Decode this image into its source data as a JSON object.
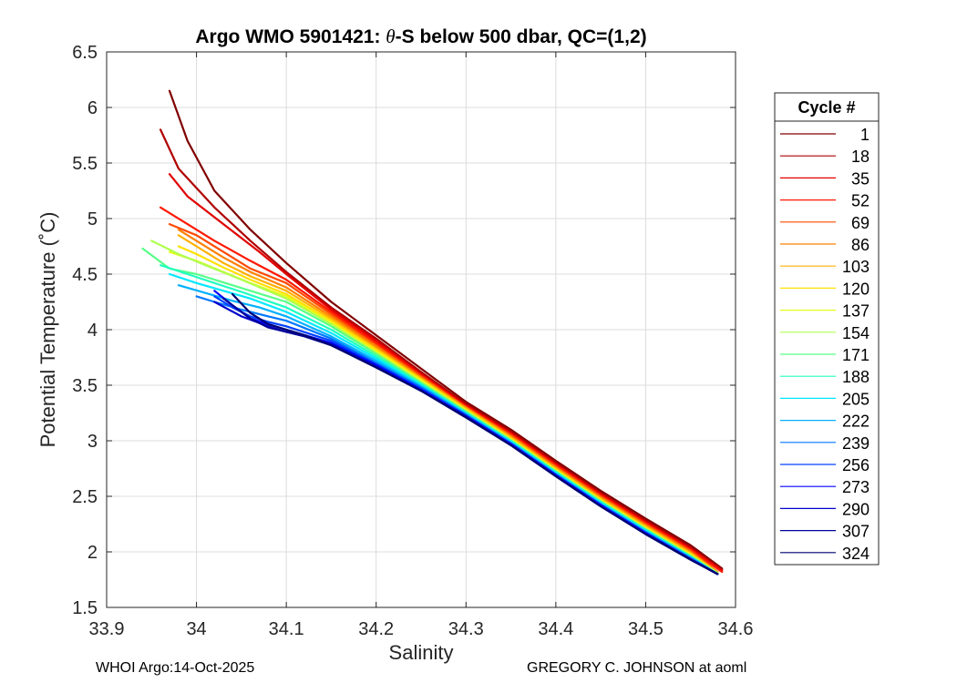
{
  "chart_data": {
    "type": "line",
    "title_prefix": "Argo WMO 5901421: ",
    "title_theta": "θ",
    "title_suffix": "-S below 500 dbar,  QC=(1,2)",
    "xlabel": "Salinity",
    "ylabel": "Potential Temperature (˚C)",
    "xlim": [
      33.9,
      34.6
    ],
    "ylim": [
      1.5,
      6.5
    ],
    "xticks": [
      33.9,
      34,
      34.1,
      34.2,
      34.3,
      34.4,
      34.5,
      34.6
    ],
    "xtick_labels": [
      "33.9",
      "34",
      "34.1",
      "34.2",
      "34.3",
      "34.4",
      "34.5",
      "34.6"
    ],
    "yticks": [
      1.5,
      2,
      2.5,
      3,
      3.5,
      4,
      4.5,
      5,
      5.5,
      6,
      6.5
    ],
    "ytick_labels": [
      "1.5",
      "2",
      "2.5",
      "3",
      "3.5",
      "4",
      "4.5",
      "5",
      "5.5",
      "6",
      "6.5"
    ],
    "grid": true,
    "legend_position": "right",
    "legend_title": "Cycle #",
    "legend": [
      {
        "label": "1",
        "color": "#800000"
      },
      {
        "label": "18",
        "color": "#b00000"
      },
      {
        "label": "35",
        "color": "#e00000"
      },
      {
        "label": "52",
        "color": "#ff1800"
      },
      {
        "label": "69",
        "color": "#ff4a00"
      },
      {
        "label": "86",
        "color": "#ff8000"
      },
      {
        "label": "103",
        "color": "#ffb000"
      },
      {
        "label": "120",
        "color": "#ffe000"
      },
      {
        "label": "137",
        "color": "#e6ff18"
      },
      {
        "label": "154",
        "color": "#b0ff4f"
      },
      {
        "label": "171",
        "color": "#58ff88"
      },
      {
        "label": "188",
        "color": "#20ffc0"
      },
      {
        "label": "205",
        "color": "#00e8ff"
      },
      {
        "label": "222",
        "color": "#00b0ff"
      },
      {
        "label": "239",
        "color": "#0078ff"
      },
      {
        "label": "256",
        "color": "#0040ff"
      },
      {
        "label": "273",
        "color": "#0000ff"
      },
      {
        "label": "290",
        "color": "#0000cc"
      },
      {
        "label": "307",
        "color": "#000099"
      },
      {
        "label": "324",
        "color": "#000070"
      }
    ],
    "series": [
      {
        "name": "1",
        "color": "#800000",
        "x": [
          33.97,
          33.99,
          34.02,
          34.06,
          34.1,
          34.15,
          34.2,
          34.25,
          34.3,
          34.35,
          34.4,
          34.45,
          34.5,
          34.55,
          34.585
        ],
        "y": [
          6.15,
          5.7,
          5.25,
          4.9,
          4.6,
          4.25,
          3.95,
          3.65,
          3.35,
          3.1,
          2.82,
          2.55,
          2.3,
          2.06,
          1.85
        ]
      },
      {
        "name": "18",
        "color": "#b00000",
        "x": [
          33.96,
          33.98,
          34.02,
          34.06,
          34.1,
          34.15,
          34.2,
          34.25,
          34.3,
          34.35,
          34.4,
          34.45,
          34.5,
          34.55,
          34.585
        ],
        "y": [
          5.8,
          5.45,
          5.1,
          4.8,
          4.52,
          4.2,
          3.92,
          3.62,
          3.33,
          3.08,
          2.8,
          2.53,
          2.28,
          2.04,
          1.84
        ]
      },
      {
        "name": "35",
        "color": "#e00000",
        "x": [
          33.97,
          33.99,
          34.03,
          34.07,
          34.1,
          34.15,
          34.2,
          34.25,
          34.3,
          34.35,
          34.4,
          34.45,
          34.5,
          34.55,
          34.585
        ],
        "y": [
          5.4,
          5.2,
          4.95,
          4.7,
          4.5,
          4.18,
          3.9,
          3.6,
          3.32,
          3.07,
          2.79,
          2.52,
          2.27,
          2.03,
          1.83
        ]
      },
      {
        "name": "52",
        "color": "#ff1800",
        "x": [
          33.96,
          33.99,
          34.02,
          34.06,
          34.1,
          34.15,
          34.2,
          34.25,
          34.3,
          34.35,
          34.4,
          34.45,
          34.5,
          34.55,
          34.585
        ],
        "y": [
          5.1,
          4.95,
          4.8,
          4.62,
          4.45,
          4.16,
          3.88,
          3.59,
          3.31,
          3.06,
          2.78,
          2.51,
          2.26,
          2.02,
          1.82
        ]
      },
      {
        "name": "69",
        "color": "#ff4a00",
        "x": [
          33.97,
          34.0,
          34.03,
          34.06,
          34.1,
          34.15,
          34.2,
          34.25,
          34.3,
          34.35,
          34.4,
          34.45,
          34.5,
          34.55,
          34.58
        ],
        "y": [
          4.95,
          4.85,
          4.7,
          4.55,
          4.42,
          4.14,
          3.86,
          3.58,
          3.3,
          3.05,
          2.77,
          2.5,
          2.25,
          2.01,
          1.82
        ]
      },
      {
        "name": "86",
        "color": "#ff8000",
        "x": [
          33.98,
          34.0,
          34.03,
          34.06,
          34.1,
          34.15,
          34.2,
          34.25,
          34.3,
          34.35,
          34.4,
          34.45,
          34.5,
          34.55,
          34.58
        ],
        "y": [
          4.9,
          4.8,
          4.65,
          4.52,
          4.38,
          4.12,
          3.85,
          3.57,
          3.3,
          3.04,
          2.76,
          2.49,
          2.24,
          2.0,
          1.82
        ]
      },
      {
        "name": "103",
        "color": "#ffb000",
        "x": [
          33.98,
          34.0,
          34.03,
          34.06,
          34.1,
          34.15,
          34.2,
          34.25,
          34.3,
          34.35,
          34.4,
          34.45,
          34.5,
          34.55,
          34.58
        ],
        "y": [
          4.85,
          4.75,
          4.6,
          4.48,
          4.35,
          4.1,
          3.83,
          3.56,
          3.29,
          3.03,
          2.75,
          2.48,
          2.23,
          1.99,
          1.81
        ]
      },
      {
        "name": "120",
        "color": "#ffe000",
        "x": [
          33.98,
          34.0,
          34.03,
          34.06,
          34.1,
          34.15,
          34.2,
          34.25,
          34.3,
          34.35,
          34.4,
          34.45,
          34.5,
          34.55,
          34.58
        ],
        "y": [
          4.75,
          4.68,
          4.56,
          4.45,
          4.32,
          4.08,
          3.82,
          3.55,
          3.28,
          3.02,
          2.74,
          2.47,
          2.22,
          1.98,
          1.81
        ]
      },
      {
        "name": "137",
        "color": "#e6ff18",
        "x": [
          33.97,
          34.0,
          34.03,
          34.06,
          34.1,
          34.15,
          34.2,
          34.25,
          34.3,
          34.35,
          34.4,
          34.45,
          34.5,
          34.55,
          34.58
        ],
        "y": [
          4.7,
          4.62,
          4.52,
          4.42,
          4.3,
          4.06,
          3.8,
          3.54,
          3.27,
          3.01,
          2.73,
          2.46,
          2.21,
          1.97,
          1.81
        ]
      },
      {
        "name": "154",
        "color": "#b0ff4f",
        "x": [
          33.95,
          33.98,
          34.01,
          34.05,
          34.1,
          34.15,
          34.2,
          34.25,
          34.3,
          34.35,
          34.4,
          34.45,
          34.5,
          34.55,
          34.58
        ],
        "y": [
          4.8,
          4.68,
          4.58,
          4.45,
          4.28,
          4.05,
          3.79,
          3.53,
          3.27,
          3.01,
          2.73,
          2.46,
          2.21,
          1.97,
          1.81
        ]
      },
      {
        "name": "171",
        "color": "#58ff88",
        "x": [
          33.94,
          33.97,
          34.0,
          34.04,
          34.1,
          34.15,
          34.2,
          34.25,
          34.3,
          34.35,
          34.4,
          34.45,
          34.5,
          34.55,
          34.58
        ],
        "y": [
          4.73,
          4.55,
          4.5,
          4.4,
          4.25,
          4.03,
          3.78,
          3.52,
          3.26,
          3.0,
          2.72,
          2.45,
          2.2,
          1.96,
          1.8
        ]
      },
      {
        "name": "188",
        "color": "#20ffc0",
        "x": [
          33.96,
          33.99,
          34.02,
          34.05,
          34.1,
          34.15,
          34.2,
          34.25,
          34.3,
          34.35,
          34.4,
          34.45,
          34.5,
          34.55,
          34.58
        ],
        "y": [
          4.58,
          4.5,
          4.42,
          4.34,
          4.2,
          4.0,
          3.76,
          3.51,
          3.25,
          3.0,
          2.72,
          2.45,
          2.2,
          1.96,
          1.8
        ]
      },
      {
        "name": "205",
        "color": "#00e8ff",
        "x": [
          33.97,
          34.0,
          34.03,
          34.06,
          34.1,
          34.15,
          34.2,
          34.25,
          34.3,
          34.35,
          34.4,
          34.45,
          34.5,
          34.55,
          34.58
        ],
        "y": [
          4.5,
          4.42,
          4.35,
          4.28,
          4.16,
          3.97,
          3.74,
          3.5,
          3.25,
          2.99,
          2.71,
          2.44,
          2.19,
          1.95,
          1.8
        ]
      },
      {
        "name": "222",
        "color": "#00b0ff",
        "x": [
          33.98,
          34.01,
          34.04,
          34.07,
          34.1,
          34.15,
          34.2,
          34.25,
          34.3,
          34.35,
          34.4,
          34.45,
          34.5,
          34.55,
          34.58
        ],
        "y": [
          4.4,
          4.33,
          4.26,
          4.2,
          4.12,
          3.94,
          3.72,
          3.49,
          3.24,
          2.98,
          2.7,
          2.43,
          2.18,
          1.95,
          1.8
        ]
      },
      {
        "name": "239",
        "color": "#0078ff",
        "x": [
          34.0,
          34.02,
          34.05,
          34.08,
          34.1,
          34.15,
          34.2,
          34.25,
          34.3,
          34.35,
          34.4,
          34.45,
          34.5,
          34.55,
          34.58
        ],
        "y": [
          4.3,
          4.25,
          4.18,
          4.12,
          4.08,
          3.92,
          3.7,
          3.48,
          3.23,
          2.98,
          2.7,
          2.43,
          2.18,
          1.94,
          1.8
        ]
      },
      {
        "name": "256",
        "color": "#0040ff",
        "x": [
          34.02,
          34.04,
          34.06,
          34.08,
          34.1,
          34.15,
          34.2,
          34.25,
          34.3,
          34.35,
          34.4,
          34.45,
          34.5,
          34.55,
          34.58
        ],
        "y": [
          4.3,
          4.2,
          4.12,
          4.07,
          4.03,
          3.9,
          3.69,
          3.47,
          3.23,
          2.97,
          2.69,
          2.42,
          2.17,
          1.94,
          1.8
        ]
      },
      {
        "name": "273",
        "color": "#0000ff",
        "x": [
          34.02,
          34.04,
          34.06,
          34.08,
          34.1,
          34.15,
          34.2,
          34.25,
          34.3,
          34.35,
          34.4,
          34.45,
          34.5,
          34.55,
          34.58
        ],
        "y": [
          4.35,
          4.22,
          4.1,
          4.05,
          4.0,
          3.88,
          3.68,
          3.46,
          3.22,
          2.97,
          2.69,
          2.42,
          2.17,
          1.93,
          1.8
        ]
      },
      {
        "name": "290",
        "color": "#0000cc",
        "x": [
          34.02,
          34.05,
          34.08,
          34.1,
          34.12,
          34.15,
          34.2,
          34.25,
          34.3,
          34.35,
          34.4,
          34.45,
          34.5,
          34.55,
          34.58
        ],
        "y": [
          4.25,
          4.12,
          4.03,
          3.98,
          3.95,
          3.87,
          3.67,
          3.45,
          3.22,
          2.96,
          2.68,
          2.41,
          2.16,
          1.93,
          1.8
        ]
      },
      {
        "name": "307",
        "color": "#000099",
        "x": [
          34.03,
          34.06,
          34.08,
          34.1,
          34.12,
          34.15,
          34.2,
          34.25,
          34.3,
          34.35,
          34.4,
          34.45,
          34.5,
          34.55,
          34.58
        ],
        "y": [
          4.28,
          4.1,
          4.02,
          3.98,
          3.94,
          3.86,
          3.66,
          3.45,
          3.21,
          2.96,
          2.68,
          2.41,
          2.16,
          1.93,
          1.8
        ]
      },
      {
        "name": "324",
        "color": "#000070",
        "x": [
          34.04,
          34.06,
          34.08,
          34.1,
          34.12,
          34.15,
          34.2,
          34.25,
          34.3,
          34.35,
          34.4,
          34.45,
          34.5,
          34.55,
          34.58
        ],
        "y": [
          4.32,
          4.15,
          4.05,
          4.0,
          3.95,
          3.86,
          3.66,
          3.45,
          3.21,
          2.96,
          2.68,
          2.41,
          2.16,
          1.93,
          1.8
        ]
      }
    ]
  },
  "footer": {
    "left": "WHOI Argo:14-Oct-2025",
    "right": "GREGORY C. JOHNSON at aoml"
  }
}
